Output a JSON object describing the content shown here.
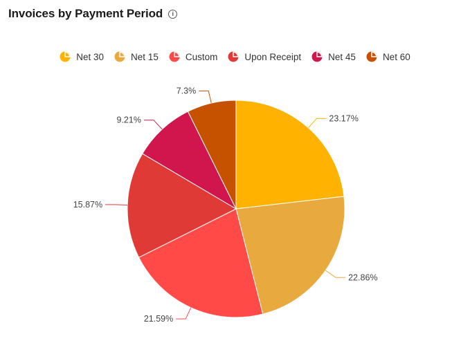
{
  "header": {
    "title": "Invoices by Payment Period",
    "info_icon": "info-icon"
  },
  "chart_data": {
    "type": "pie",
    "title": "Invoices by Payment Period",
    "legend_position": "top",
    "categories": [
      "Net 30",
      "Net 15",
      "Custom",
      "Upon Receipt",
      "Net 45",
      "Net 60"
    ],
    "values": [
      23.17,
      22.86,
      21.59,
      15.87,
      9.21,
      7.3
    ],
    "labels": [
      "23.17%",
      "22.86%",
      "21.59%",
      "15.87%",
      "9.21%",
      "7.3%"
    ],
    "colors": [
      "#FFB300",
      "#E8A93F",
      "#FF4A48",
      "#E03A37",
      "#D0164D",
      "#C65200"
    ]
  }
}
